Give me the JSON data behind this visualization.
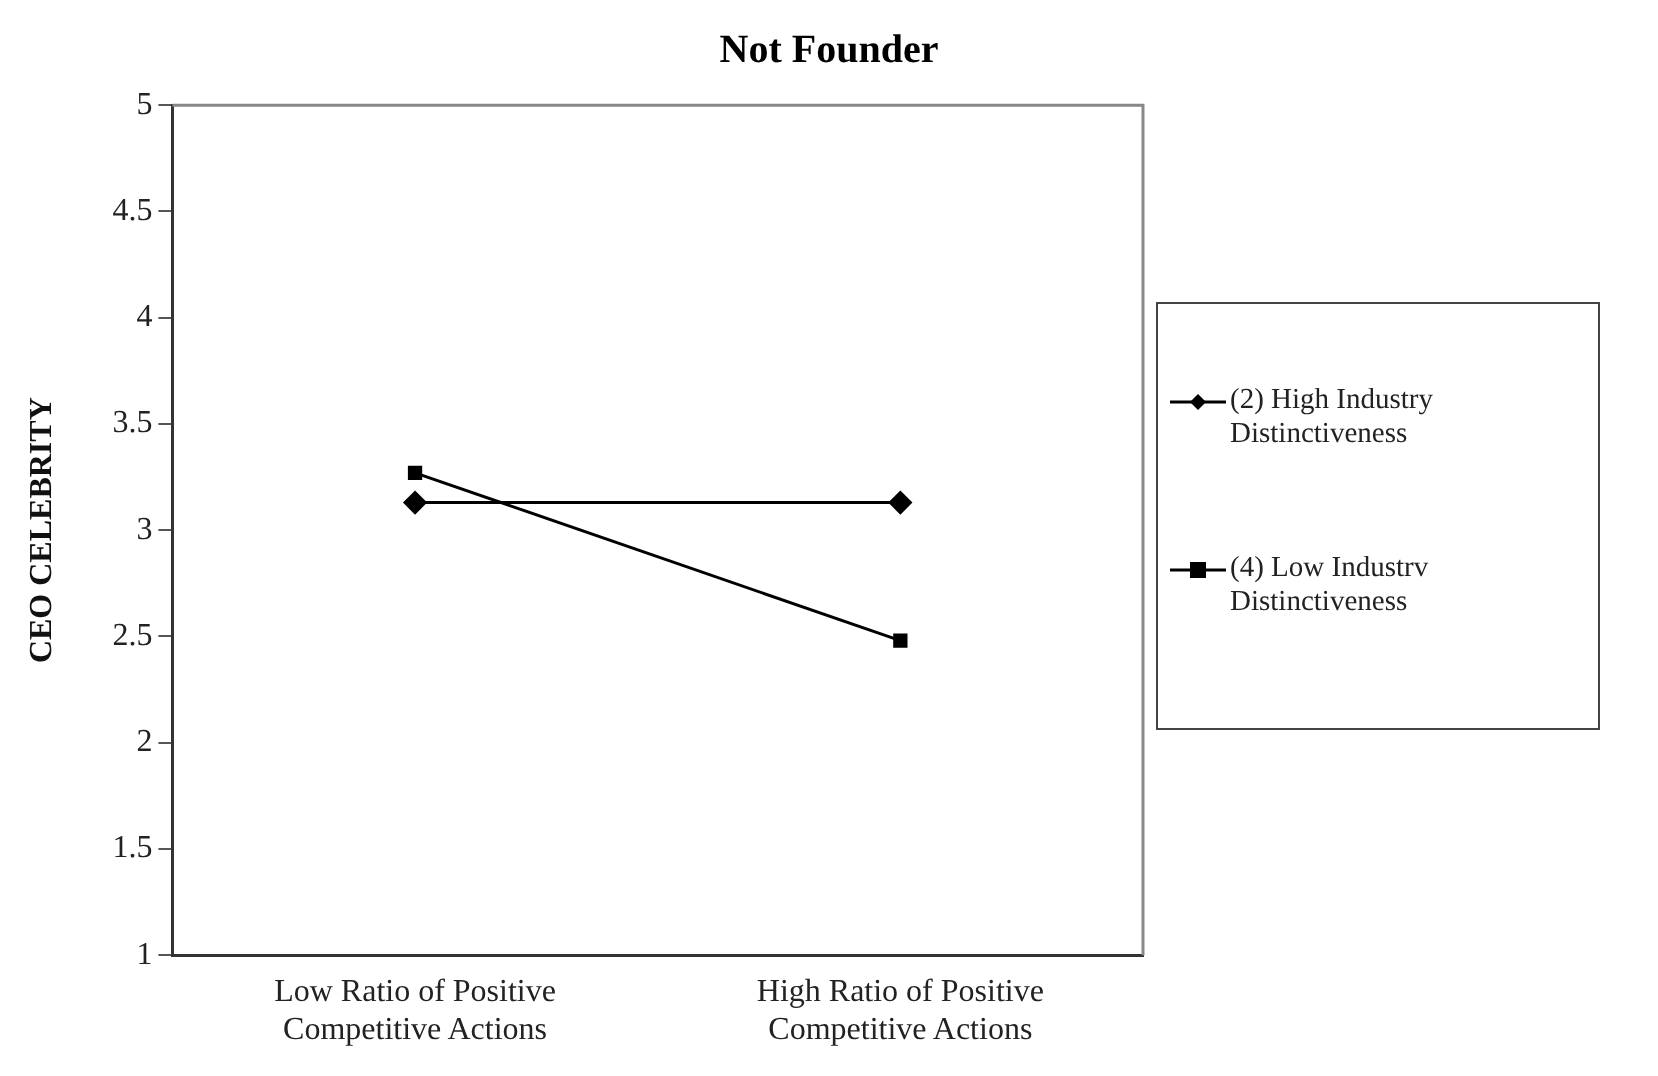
{
  "chart_data": {
    "type": "line",
    "title": "Not Founder",
    "ylabel": "CEO CELEBRITY",
    "categories": [
      "Low Ratio of Positive Competitive Actions",
      "High Ratio of Positive Competitive Actions"
    ],
    "series": [
      {
        "name": "(2) High Industry Distinctiveness",
        "color": "#000000",
        "marker": "diamond",
        "values": [
          3.13,
          3.13
        ]
      },
      {
        "name": "(4) Low Industrv Distinctiveness",
        "color": "#000000",
        "marker": "square",
        "values": [
          3.27,
          2.48
        ]
      }
    ],
    "ylim": [
      1,
      5
    ],
    "yticks": [
      1,
      1.5,
      2,
      2.5,
      3,
      3.5,
      4,
      4.5,
      5
    ],
    "grid": false,
    "legend": "right",
    "line_style": "solid"
  }
}
